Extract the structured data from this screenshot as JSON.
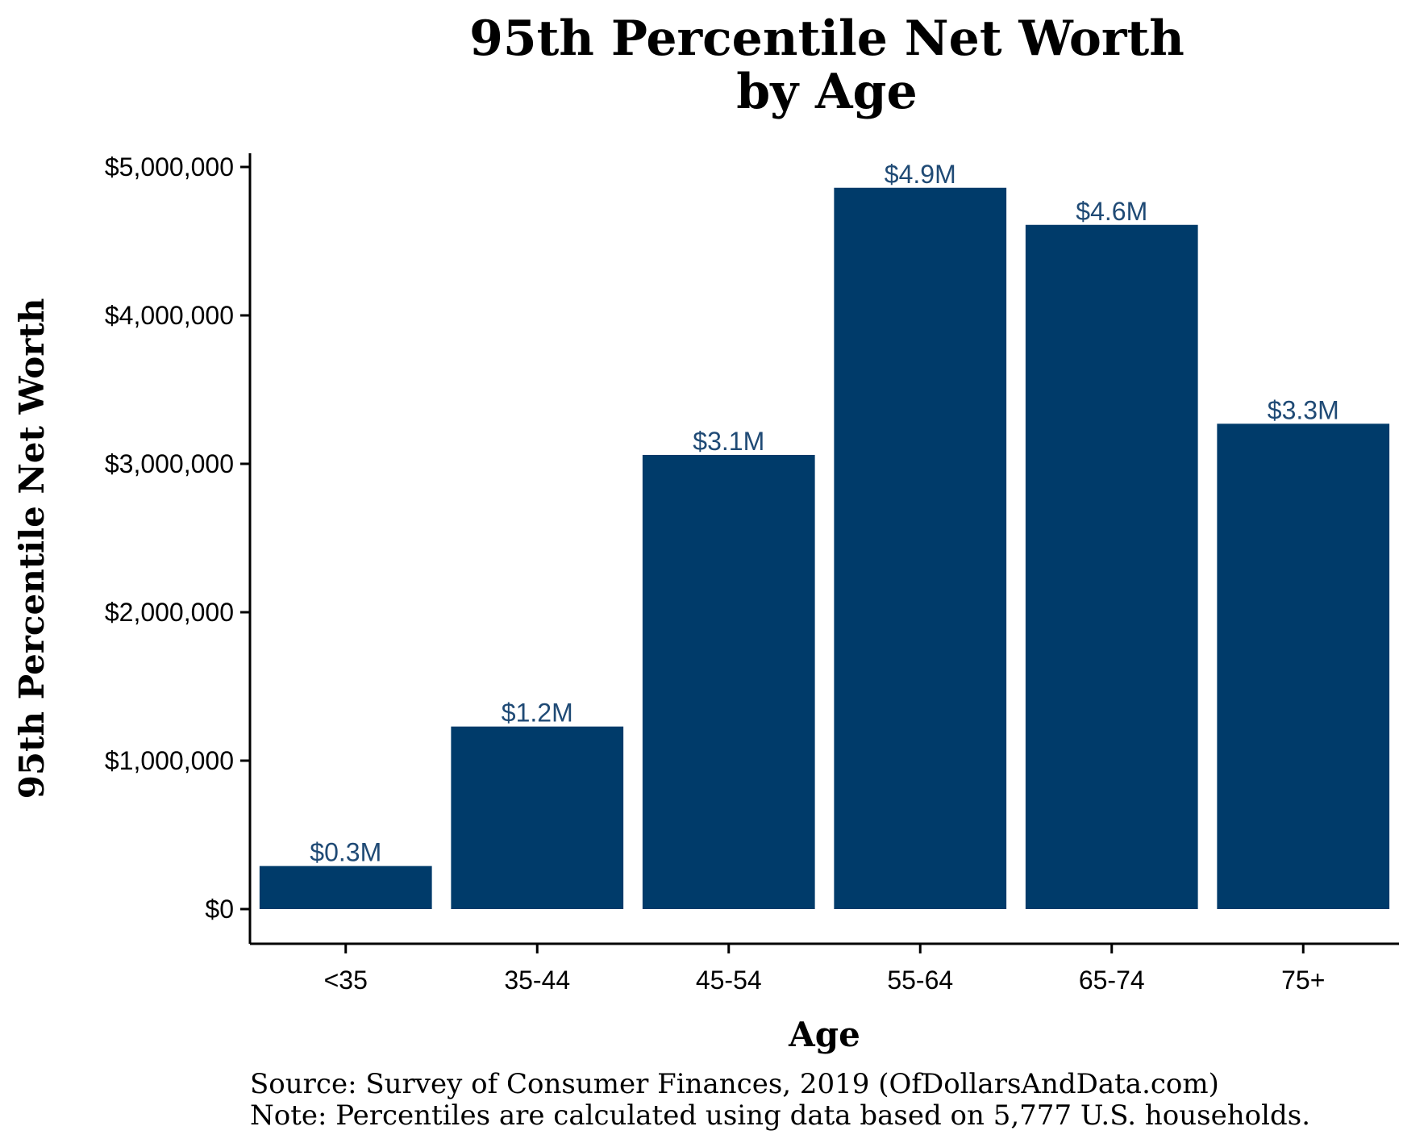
{
  "chart_data": {
    "type": "bar",
    "title_lines": [
      "95th Percentile Net Worth",
      "by Age"
    ],
    "xlabel": "Age",
    "ylabel": "95th Percentile Net Worth",
    "categories": [
      "<35",
      "35-44",
      "45-54",
      "55-64",
      "65-74",
      "75+"
    ],
    "values": [
      290000,
      1230000,
      3060000,
      4860000,
      4610000,
      3270000
    ],
    "data_labels": [
      "$0.3M",
      "$1.2M",
      "$3.1M",
      "$4.9M",
      "$4.6M",
      "$3.3M"
    ],
    "yticks": [
      0,
      1000000,
      2000000,
      3000000,
      4000000,
      5000000
    ],
    "ytick_labels": [
      "$0",
      "$1,000,000",
      "$2,000,000",
      "$3,000,000",
      "$4,000,000",
      "$5,000,000"
    ],
    "ylim": [
      0,
      5000000
    ],
    "grid": false,
    "legend": "none",
    "bar_color": "#003b6a",
    "label_color": "#1f4a75"
  },
  "notes": {
    "source": "Source:  Survey of Consumer Finances, 2019 (OfDollarsAndData.com)",
    "note": "Note: Percentiles are calculated using data based on 5,777 U.S. households."
  }
}
